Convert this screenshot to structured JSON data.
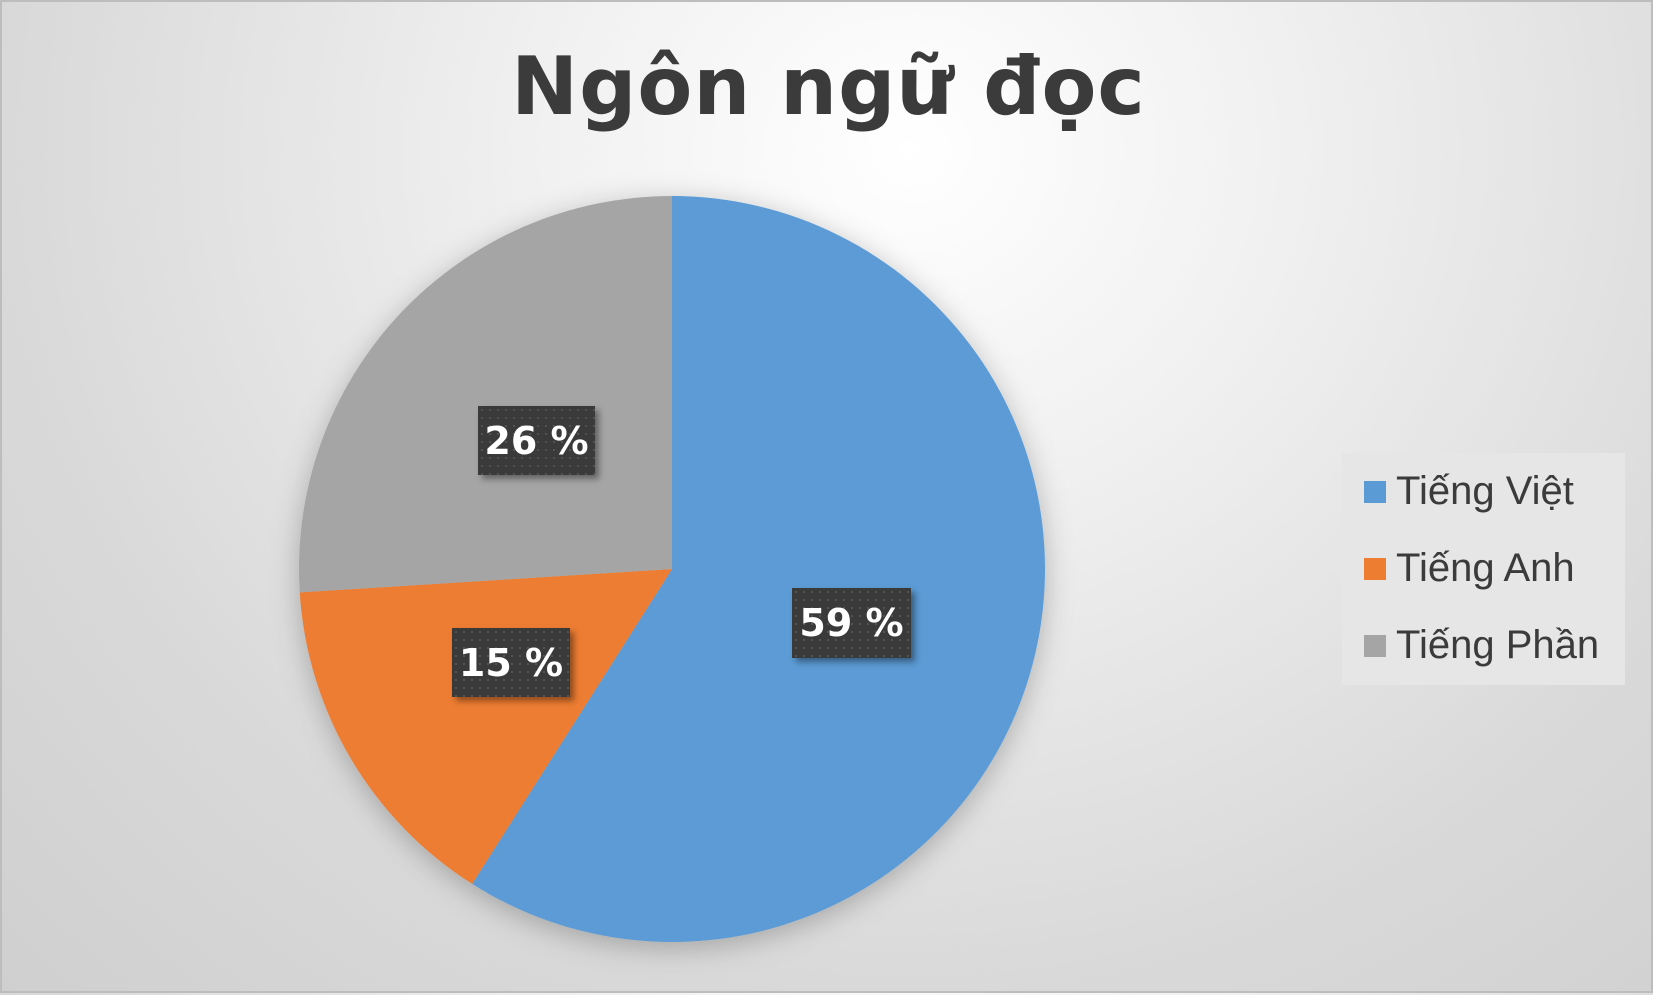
{
  "chart_data": {
    "type": "pie",
    "title": "Ngôn ngữ đọc",
    "categories": [
      "Tiếng Việt",
      "Tiếng Anh",
      "Tiếng Phần"
    ],
    "values": [
      59,
      15,
      26
    ],
    "data_labels": [
      "59 %",
      "15 %",
      "26 %"
    ],
    "colors": [
      "#5B9BD5",
      "#ED7D31",
      "#A5A5A5"
    ],
    "start_angle": "top, clockwise",
    "legend_position": "right"
  }
}
